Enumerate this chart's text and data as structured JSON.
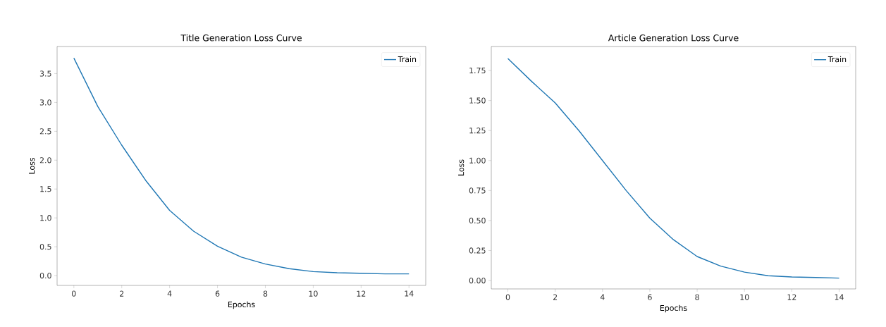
{
  "chart_data": [
    {
      "type": "line",
      "title": "Title Generation Loss Curve",
      "xlabel": "Epochs",
      "ylabel": "Loss",
      "legend": "top right",
      "x": [
        0,
        1,
        2,
        3,
        4,
        5,
        6,
        7,
        8,
        9,
        10,
        11,
        12,
        13,
        14
      ],
      "series": [
        {
          "name": "Train",
          "color": "#1f77b4",
          "values": [
            3.77,
            2.93,
            2.26,
            1.65,
            1.13,
            0.77,
            0.51,
            0.32,
            0.2,
            0.12,
            0.07,
            0.05,
            0.04,
            0.03,
            0.03
          ]
        }
      ],
      "xlim": [
        -0.7,
        14.7
      ],
      "ylim": [
        -0.17,
        3.97
      ],
      "xticks": [
        0,
        2,
        4,
        6,
        8,
        10,
        12,
        14
      ],
      "yticks": [
        {
          "value": 0,
          "label": "0.0"
        },
        {
          "value": 0.5,
          "label": "0.5"
        },
        {
          "value": 1,
          "label": "1.0"
        },
        {
          "value": 1.5,
          "label": "1.5"
        },
        {
          "value": 2,
          "label": "2.0"
        },
        {
          "value": 2.5,
          "label": "2.5"
        },
        {
          "value": 3,
          "label": "3.0"
        },
        {
          "value": 3.5,
          "label": "3.5"
        }
      ]
    },
    {
      "type": "line",
      "title": "Article Generation Loss Curve",
      "xlabel": "Epochs",
      "ylabel": "Loss",
      "legend": "top right",
      "x": [
        0,
        1,
        2,
        3,
        4,
        5,
        6,
        7,
        8,
        9,
        10,
        11,
        12,
        13,
        14
      ],
      "series": [
        {
          "name": "Train",
          "color": "#1f77b4",
          "values": [
            1.85,
            1.66,
            1.48,
            1.25,
            1.0,
            0.75,
            0.52,
            0.34,
            0.2,
            0.12,
            0.07,
            0.04,
            0.03,
            0.025,
            0.02
          ]
        }
      ],
      "xlim": [
        -0.7,
        14.7
      ],
      "ylim": [
        -0.07,
        1.95
      ],
      "xticks": [
        0,
        2,
        4,
        6,
        8,
        10,
        12,
        14
      ],
      "yticks": [
        {
          "value": 0,
          "label": "0.00"
        },
        {
          "value": 0.25,
          "label": "0.25"
        },
        {
          "value": 0.5,
          "label": "0.50"
        },
        {
          "value": 0.75,
          "label": "0.75"
        },
        {
          "value": 1,
          "label": "1.00"
        },
        {
          "value": 1.25,
          "label": "1.25"
        },
        {
          "value": 1.5,
          "label": "1.50"
        },
        {
          "value": 1.75,
          "label": "1.75"
        }
      ]
    }
  ]
}
